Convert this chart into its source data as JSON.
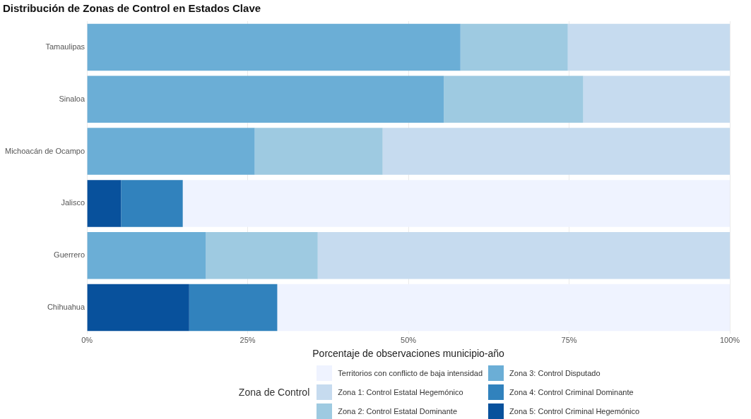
{
  "chart_data": {
    "type": "bar",
    "orientation": "horizontal",
    "stacked": true,
    "title": "Distribución de Zonas de Control en Estados Clave",
    "xlabel": "Porcentaje de observaciones municipio-año",
    "legend_title": "Zona de Control",
    "legend": "bottom",
    "grid": "x",
    "categories": [
      "Tamaulipas",
      "Sinaloa",
      "Michoacán de Ocampo",
      "Jalisco",
      "Guerrero",
      "Chihuahua"
    ],
    "xlim": [
      0,
      100
    ],
    "xticks": [
      {
        "value": 0,
        "label": "0%"
      },
      {
        "value": 25,
        "label": "25%"
      },
      {
        "value": 50,
        "label": "50%"
      },
      {
        "value": 75,
        "label": "75%"
      },
      {
        "value": 100,
        "label": "100%"
      }
    ],
    "series": [
      {
        "name": "Zona 5: Control Criminal Hegemónico",
        "color": "#08519c",
        "values": [
          null,
          null,
          null,
          5.3,
          null,
          15.9
        ]
      },
      {
        "name": "Zona 4: Control Criminal Dominante",
        "color": "#3182bd",
        "values": [
          null,
          null,
          null,
          9.6,
          null,
          13.7
        ]
      },
      {
        "name": "Zona 3: Control Disputado",
        "color": "#6baed6",
        "values": [
          58.1,
          55.5,
          26.1,
          null,
          18.5,
          null
        ]
      },
      {
        "name": "Zona 2: Control Estatal Dominante",
        "color": "#9ecae1",
        "values": [
          16.7,
          21.7,
          19.9,
          null,
          17.4,
          null
        ]
      },
      {
        "name": "Zona 1: Control Estatal Hegemónico",
        "color": "#c6dbef",
        "values": [
          25.2,
          22.8,
          54.0,
          null,
          64.1,
          null
        ]
      },
      {
        "name": "Territorios con conflicto de baja intensidad",
        "color": "#eff3ff",
        "values": [
          null,
          null,
          null,
          85.1,
          null,
          70.4
        ]
      }
    ]
  }
}
